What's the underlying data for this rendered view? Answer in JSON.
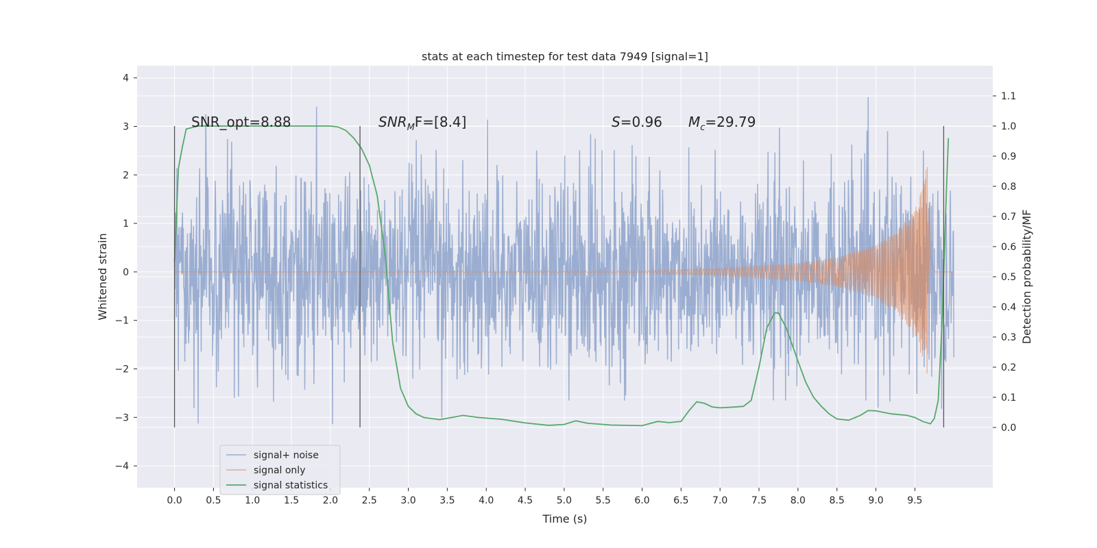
{
  "chart_data": {
    "type": "line",
    "title": "stats at each timestep for test data 7949 [signal=1]",
    "xlabel": "Time (s)",
    "ylabel_left": "Whitened strain",
    "ylabel_right": "Detection probability/MF",
    "xlim": [
      -0.48,
      10.5
    ],
    "ylim_left": [
      -4.45,
      4.25
    ],
    "ylim_right": [
      -0.2,
      1.2
    ],
    "x_ticks": [
      "0.0",
      "0.5",
      "1.0",
      "1.5",
      "2.0",
      "2.5",
      "3.0",
      "3.5",
      "4.0",
      "4.5",
      "5.0",
      "5.5",
      "6.0",
      "6.5",
      "7.0",
      "7.5",
      "8.0",
      "8.5",
      "9.0",
      "9.5"
    ],
    "y_left_ticks": [
      "4",
      "3",
      "2",
      "1",
      "0",
      "−1",
      "−2",
      "−3",
      "−4"
    ],
    "y_right_ticks": [
      "1.1",
      "1.0",
      "0.9",
      "0.8",
      "0.7",
      "0.6",
      "0.5",
      "0.4",
      "0.3",
      "0.2",
      "0.1",
      "0.0"
    ],
    "grid": true,
    "colors": {
      "signal_noise": "#4c72b0",
      "signal_only": "#dd8452",
      "statistics": "#55a868",
      "axes_bg": "#eaeaf2",
      "grid": "#ffffff",
      "vline": "#555555"
    },
    "annotations": {
      "snr_opt": "SNR_opt=8.88",
      "snr_mf_base": "SNR",
      "snr_mf_sub": "M",
      "snr_mf_rest": "F=[8.4]",
      "s_label": "S",
      "s_value": "=0.96",
      "mc_label": "M",
      "mc_sub": "c",
      "mc_value": "=29.79"
    },
    "vertical_lines_x": [
      0.0,
      2.38,
      9.87
    ],
    "vertical_lines_range": [
      0.0,
      1.0
    ],
    "legend": {
      "position": "lower-left",
      "entries": [
        "signal+ noise",
        "signal only",
        "signal statistics"
      ]
    },
    "series": [
      {
        "name": "signal+ noise",
        "description": "whitened noisy strain, approx. unit-variance noise from 0 to 10 s, y range about −3.6 to 3.6",
        "x_range": [
          0.0,
          10.0
        ],
        "noise_std": 1.0
      },
      {
        "name": "signal only",
        "description": "chirp, near zero until ~7 s, growing to ±2.3 at merger near 9.67 s",
        "points": [
          [
            0.0,
            0.0
          ],
          [
            6.0,
            0.02
          ],
          [
            7.0,
            0.08
          ],
          [
            8.0,
            0.18
          ],
          [
            8.5,
            0.3
          ],
          [
            9.0,
            0.55
          ],
          [
            9.3,
            0.9
          ],
          [
            9.5,
            1.3
          ],
          [
            9.6,
            1.8
          ],
          [
            9.67,
            2.3
          ],
          [
            9.7,
            0.3
          ],
          [
            9.75,
            0.0
          ],
          [
            10.0,
            0.0
          ]
        ]
      },
      {
        "name": "signal statistics",
        "points": [
          [
            0.0,
            0.55
          ],
          [
            0.05,
            0.86
          ],
          [
            0.1,
            0.93
          ],
          [
            0.15,
            0.99
          ],
          [
            0.3,
            1.0
          ],
          [
            1.0,
            1.0
          ],
          [
            2.0,
            1.0
          ],
          [
            2.1,
            0.997
          ],
          [
            2.2,
            0.985
          ],
          [
            2.3,
            0.96
          ],
          [
            2.4,
            0.925
          ],
          [
            2.5,
            0.87
          ],
          [
            2.6,
            0.77
          ],
          [
            2.7,
            0.58
          ],
          [
            2.8,
            0.28
          ],
          [
            2.9,
            0.13
          ],
          [
            3.0,
            0.07
          ],
          [
            3.1,
            0.045
          ],
          [
            3.2,
            0.033
          ],
          [
            3.4,
            0.026
          ],
          [
            3.6,
            0.035
          ],
          [
            3.7,
            0.04
          ],
          [
            3.9,
            0.033
          ],
          [
            4.2,
            0.027
          ],
          [
            4.5,
            0.015
          ],
          [
            4.8,
            0.007
          ],
          [
            5.0,
            0.01
          ],
          [
            5.15,
            0.022
          ],
          [
            5.3,
            0.014
          ],
          [
            5.6,
            0.008
          ],
          [
            6.0,
            0.006
          ],
          [
            6.2,
            0.02
          ],
          [
            6.35,
            0.016
          ],
          [
            6.5,
            0.02
          ],
          [
            6.6,
            0.055
          ],
          [
            6.7,
            0.085
          ],
          [
            6.8,
            0.08
          ],
          [
            6.9,
            0.068
          ],
          [
            7.0,
            0.065
          ],
          [
            7.2,
            0.068
          ],
          [
            7.3,
            0.07
          ],
          [
            7.4,
            0.09
          ],
          [
            7.5,
            0.2
          ],
          [
            7.6,
            0.33
          ],
          [
            7.7,
            0.38
          ],
          [
            7.75,
            0.38
          ],
          [
            7.85,
            0.33
          ],
          [
            8.0,
            0.22
          ],
          [
            8.1,
            0.15
          ],
          [
            8.2,
            0.1
          ],
          [
            8.3,
            0.07
          ],
          [
            8.4,
            0.045
          ],
          [
            8.5,
            0.028
          ],
          [
            8.65,
            0.024
          ],
          [
            8.8,
            0.04
          ],
          [
            8.9,
            0.056
          ],
          [
            9.0,
            0.055
          ],
          [
            9.2,
            0.045
          ],
          [
            9.4,
            0.04
          ],
          [
            9.5,
            0.033
          ],
          [
            9.6,
            0.02
          ],
          [
            9.7,
            0.012
          ],
          [
            9.75,
            0.03
          ],
          [
            9.8,
            0.09
          ],
          [
            9.85,
            0.35
          ],
          [
            9.9,
            0.75
          ],
          [
            9.93,
            0.96
          ]
        ]
      }
    ]
  }
}
